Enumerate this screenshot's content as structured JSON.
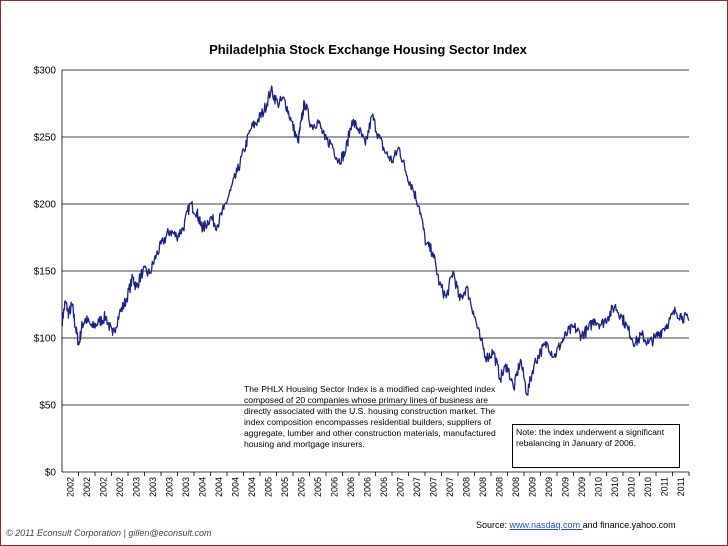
{
  "chart_data": {
    "type": "line",
    "title": "Philadelphia Stock Exchange Housing Sector Index",
    "xlabel": "",
    "ylabel": "",
    "ylim": [
      0,
      300
    ],
    "yticks": [
      "$0",
      "$50",
      "$100",
      "$150",
      "$200",
      "$250",
      "$300"
    ],
    "yvalues": [
      0,
      50,
      100,
      150,
      200,
      250,
      300
    ],
    "grid": true,
    "xlim": [
      2002.0,
      2011.3
    ],
    "xtick_labels": [
      "2002",
      "2002",
      "2002",
      "2002",
      "2003",
      "2003",
      "2003",
      "2003",
      "2004",
      "2004",
      "2004",
      "2004",
      "2005",
      "2005",
      "2005",
      "2005",
      "2006",
      "2006",
      "2006",
      "2006",
      "2007",
      "2007",
      "2007",
      "2007",
      "2008",
      "2008",
      "2008",
      "2008",
      "2009",
      "2009",
      "2009",
      "2009",
      "2010",
      "2010",
      "2010",
      "2010",
      "2011",
      "2011"
    ],
    "series": [
      {
        "color": "#1a237e",
        "x": [
          2002.0,
          2002.05,
          2002.1,
          2002.15,
          2002.2,
          2002.25,
          2002.3,
          2002.35,
          2002.45,
          2002.55,
          2002.65,
          2002.75,
          2002.85,
          2002.95,
          2003.05,
          2003.1,
          2003.2,
          2003.3,
          2003.4,
          2003.5,
          2003.6,
          2003.7,
          2003.8,
          2003.9,
          2004.0,
          2004.05,
          2004.1,
          2004.2,
          2004.3,
          2004.4,
          2004.5,
          2004.6,
          2004.7,
          2004.8,
          2004.9,
          2005.0,
          2005.1,
          2005.2,
          2005.3,
          2005.4,
          2005.5,
          2005.55,
          2005.6,
          2005.7,
          2005.8,
          2005.9,
          2006.0,
          2006.1,
          2006.2,
          2006.3,
          2006.4,
          2006.5,
          2006.6,
          2006.7,
          2006.8,
          2006.9,
          2007.0,
          2007.1,
          2007.2,
          2007.3,
          2007.4,
          2007.5,
          2007.6,
          2007.7,
          2007.8,
          2007.9,
          2008.0,
          2008.1,
          2008.2,
          2008.3,
          2008.4,
          2008.5,
          2008.6,
          2008.7,
          2008.8,
          2008.9,
          2009.0,
          2009.1,
          2009.2,
          2009.3,
          2009.4,
          2009.5,
          2009.6,
          2009.7,
          2009.8,
          2009.9,
          2010.0,
          2010.1,
          2010.2,
          2010.3,
          2010.4,
          2010.5,
          2010.6,
          2010.7,
          2010.8,
          2010.9,
          2011.0,
          2011.1,
          2011.2,
          2011.3
        ],
        "values": [
          112,
          127,
          118,
          125,
          108,
          95,
          110,
          114,
          108,
          112,
          116,
          102,
          118,
          128,
          145,
          138,
          150,
          148,
          162,
          172,
          180,
          176,
          182,
          200,
          194,
          185,
          182,
          190,
          184,
          196,
          210,
          224,
          240,
          256,
          262,
          270,
          285,
          275,
          278,
          262,
          246,
          262,
          276,
          258,
          262,
          248,
          245,
          232,
          238,
          262,
          256,
          244,
          266,
          250,
          238,
          232,
          242,
          224,
          212,
          198,
          170,
          164,
          140,
          130,
          150,
          128,
          138,
          120,
          100,
          85,
          90,
          70,
          80,
          62,
          84,
          58,
          80,
          90,
          96,
          86,
          96,
          104,
          108,
          102,
          106,
          114,
          110,
          116,
          124,
          116,
          106,
          96,
          102,
          96,
          100,
          106,
          112,
          120,
          116,
          113
        ]
      }
    ]
  },
  "notes": {
    "phlx": "The PHLX Housing Sector Index is a modified cap-weighted index composed of 20 companies whose primary lines of business are directly associated with the U.S. housing construction market. The index composition encompasses residential builders, suppliers of aggregate, lumber and other construction materials, manufactured housing and mortgage insurers.",
    "rebalance": "Note: the index underwent a significant rebalancing in January of 2006."
  },
  "footer": {
    "source_prefix": "Source: ",
    "source_link": "www.nasdaq.com ",
    "source_suffix": " and finance.yahoo.com",
    "copyright": "© 2011 Econsult Corporation  |  gillen@econsult.com"
  }
}
